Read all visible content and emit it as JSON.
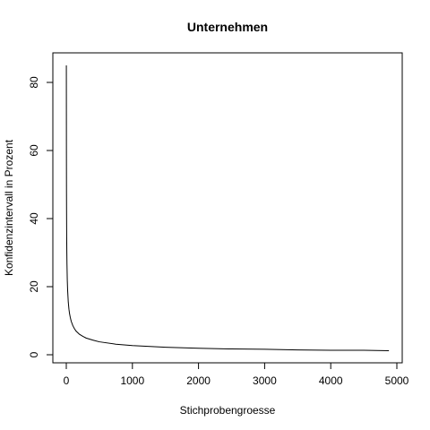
{
  "chart_data": {
    "type": "line",
    "title": "Unternehmen",
    "xlabel": "Stichprobengroesse",
    "ylabel": "Konfidenzintervall in Prozent",
    "xlim": [
      0,
      4900
    ],
    "ylim": [
      0,
      85
    ],
    "x_ticks": [
      0,
      1000,
      2000,
      3000,
      4000,
      5000
    ],
    "y_ticks": [
      0,
      20,
      40,
      60,
      80
    ],
    "grid": false,
    "series": [
      {
        "color": "#000000",
        "x": [
          1,
          2,
          3,
          4,
          6,
          8,
          10,
          15,
          20,
          30,
          40,
          50,
          60,
          75,
          100,
          125,
          150,
          200,
          250,
          300,
          400,
          500,
          750,
          1000,
          1500,
          2000,
          2500,
          3000,
          3500,
          4000,
          4500,
          4880
        ],
        "y": [
          85.0,
          60.1,
          49.1,
          42.5,
          34.7,
          30.1,
          26.9,
          21.9,
          19.0,
          15.5,
          13.4,
          12.0,
          11.0,
          9.8,
          8.5,
          7.6,
          6.9,
          6.0,
          5.4,
          4.9,
          4.3,
          3.8,
          3.1,
          2.7,
          2.2,
          1.9,
          1.7,
          1.6,
          1.4,
          1.3,
          1.3,
          1.2
        ]
      }
    ]
  }
}
